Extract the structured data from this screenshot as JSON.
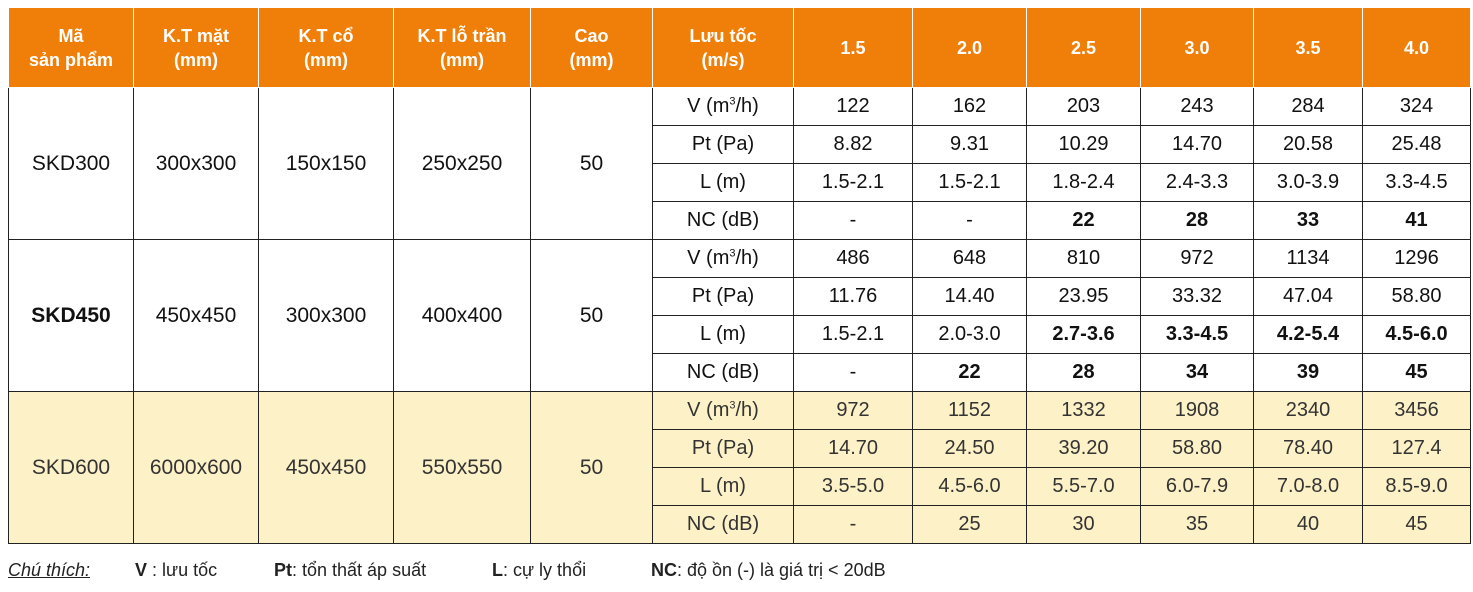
{
  "table": {
    "headers": [
      "Mã\nsản phẩm",
      "K.T mặt\n(mm)",
      "K.T cổ\n(mm)",
      "K.T lỗ trần\n(mm)",
      "Cao\n(mm)",
      "Lưu tốc\n(m/s)",
      "1.5",
      "2.0",
      "2.5",
      "3.0",
      "3.5",
      "4.0"
    ],
    "param_labels": [
      "V (m³/h)",
      "Pt (Pa)",
      "L (m)",
      "NC (dB)"
    ],
    "products": [
      {
        "code": "SKD300",
        "face": "300x300",
        "neck": "150x150",
        "ceiling_hole": "250x250",
        "height": "50",
        "rows": [
          [
            "122",
            "162",
            "203",
            "243",
            "284",
            "324"
          ],
          [
            "8.82",
            "9.31",
            "10.29",
            "14.70",
            "20.58",
            "25.48"
          ],
          [
            "1.5-2.1",
            "1.5-2.1",
            "1.8-2.4",
            "2.4-3.3",
            "3.0-3.9",
            "3.3-4.5"
          ],
          [
            "-",
            "-",
            "22",
            "28",
            "33",
            "41"
          ]
        ]
      },
      {
        "code": "SKD450",
        "face": "450x450",
        "neck": "300x300",
        "ceiling_hole": "400x400",
        "height": "50",
        "rows": [
          [
            "486",
            "648",
            "810",
            "972",
            "1134",
            "1296"
          ],
          [
            "11.76",
            "14.40",
            "23.95",
            "33.32",
            "47.04",
            "58.80"
          ],
          [
            "1.5-2.1",
            "2.0-3.0",
            "2.7-3.6",
            "3.3-4.5",
            "4.2-5.4",
            "4.5-6.0"
          ],
          [
            "-",
            "22",
            "28",
            "34",
            "39",
            "45"
          ]
        ]
      },
      {
        "code": "SKD600",
        "face": "6000x600",
        "neck": "450x450",
        "ceiling_hole": "550x550",
        "height": "50",
        "rows": [
          [
            "972",
            "1152",
            "1332",
            "1908",
            "2340",
            "3456"
          ],
          [
            "14.70",
            "24.50",
            "39.20",
            "58.80",
            "78.40",
            "127.4"
          ],
          [
            "3.5-5.0",
            "4.5-6.0",
            "5.5-7.0",
            "6.0-7.9",
            "7.0-8.0",
            "8.5-9.0"
          ],
          [
            "-",
            "25",
            "30",
            "35",
            "40",
            "45"
          ]
        ]
      }
    ]
  },
  "legend": {
    "title": "Chú thích:",
    "v_key": "V",
    "v_text": " : lưu tốc",
    "pt_key": "Pt",
    "pt_text": ": tổn thất áp suất",
    "l_key": "L",
    "l_text": ": cự ly thổi",
    "nc_key": "NC",
    "nc_text": ": độ ồn (-) là giá trị < 20dB"
  },
  "colors": {
    "header": "#f07f0a",
    "highlight_row": "#fdf1c7"
  }
}
